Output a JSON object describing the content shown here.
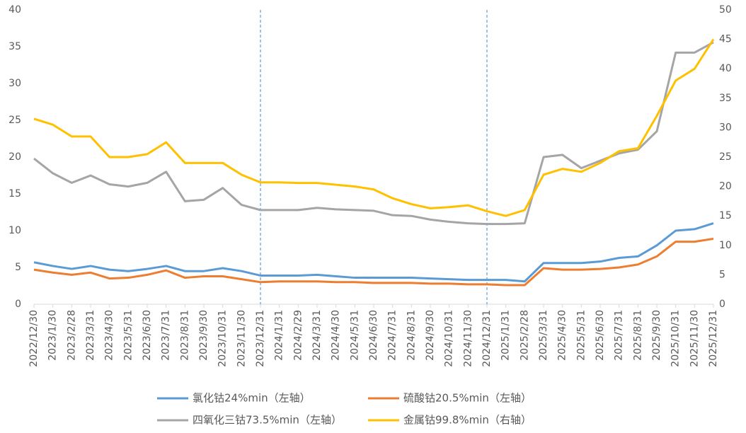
{
  "chart_data": {
    "type": "line",
    "categories": [
      "2022/12/30",
      "2023/1/30",
      "2023/2/28",
      "2023/3/31",
      "2023/4/30",
      "2023/5/31",
      "2023/6/30",
      "2023/7/31",
      "2023/8/31",
      "2023/9/30",
      "2023/10/31",
      "2023/11/30",
      "2023/12/31",
      "2024/1/31",
      "2024/2/29",
      "2024/3/31",
      "2024/4/30",
      "2024/5/31",
      "2024/6/30",
      "2024/7/31",
      "2024/8/31",
      "2024/9/30",
      "2024/10/31",
      "2024/11/30",
      "2024/12/31",
      "2025/1/31",
      "2025/2/28",
      "2025/3/31",
      "2025/4/30",
      "2025/5/31",
      "2025/6/30",
      "2025/7/31",
      "2025/8/31",
      "2025/9/30",
      "2025/10/31",
      "2025/11/30",
      "2025/12/31"
    ],
    "series": [
      {
        "name": "氯化钴24%min（左轴）",
        "color": "#5b9bd5",
        "values": [
          5.7,
          5.2,
          4.8,
          5.2,
          4.7,
          4.5,
          4.8,
          5.2,
          4.5,
          4.5,
          4.9,
          4.5,
          3.9,
          3.9,
          3.9,
          4.0,
          3.8,
          3.6,
          3.6,
          3.6,
          3.6,
          3.5,
          3.4,
          3.3,
          3.3,
          3.3,
          3.1,
          5.6,
          5.6,
          5.6,
          5.8,
          6.3,
          6.5,
          8.0,
          10.0,
          10.2,
          11.0
        ]
      },
      {
        "name": "硫酸钴20.5%min（左轴）",
        "color": "#ed7d31",
        "values": [
          4.7,
          4.3,
          4.0,
          4.3,
          3.5,
          3.6,
          4.0,
          4.6,
          3.6,
          3.8,
          3.8,
          3.4,
          3.0,
          3.1,
          3.1,
          3.1,
          3.0,
          3.0,
          2.9,
          2.9,
          2.9,
          2.8,
          2.8,
          2.7,
          2.7,
          2.6,
          2.6,
          4.9,
          4.7,
          4.7,
          4.8,
          5.0,
          5.4,
          6.5,
          8.5,
          8.5,
          8.9
        ]
      },
      {
        "name": "四氧化三钴73.5%min（左轴）",
        "color": "#a5a5a5",
        "values": [
          19.8,
          17.8,
          16.5,
          17.5,
          16.3,
          16.0,
          16.5,
          18.0,
          14.0,
          14.2,
          15.8,
          13.5,
          12.8,
          12.8,
          12.8,
          13.1,
          12.9,
          12.8,
          12.7,
          12.1,
          12.0,
          11.5,
          11.2,
          11.0,
          10.9,
          10.9,
          11.0,
          20.0,
          20.3,
          18.5,
          19.5,
          20.5,
          21.0,
          23.5,
          34.2,
          34.2,
          35.6
        ]
      },
      {
        "name": "金属钴99.8%min（右轴）",
        "color": "#ffc000",
        "axis": "y2",
        "values": [
          31.5,
          30.5,
          28.5,
          28.5,
          25.0,
          25.0,
          25.5,
          27.5,
          24.0,
          24.0,
          24.0,
          22.0,
          20.7,
          20.7,
          20.6,
          20.6,
          20.3,
          20.0,
          19.5,
          18.0,
          17.0,
          16.3,
          16.5,
          16.8,
          15.8,
          15.0,
          16.0,
          22.0,
          23.0,
          22.5,
          24.0,
          26.0,
          26.5,
          32.0,
          38.0,
          40.0,
          45.0
        ]
      }
    ],
    "ylim": [
      0,
      40
    ],
    "yticks": [
      0,
      5,
      10,
      15,
      20,
      25,
      30,
      35,
      40
    ],
    "y2lim": [
      0,
      50
    ],
    "y2ticks": [
      0,
      5,
      10,
      15,
      20,
      25,
      30,
      35,
      40,
      45,
      50
    ],
    "vlines_at": [
      "2023/12/31",
      "2024/12/31"
    ],
    "legend": "bottom"
  }
}
